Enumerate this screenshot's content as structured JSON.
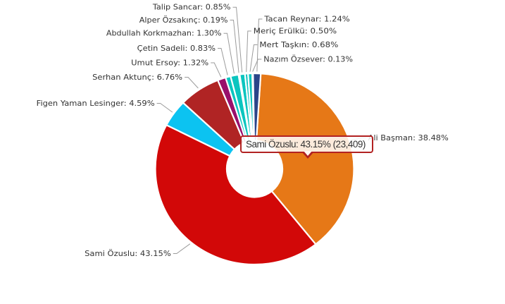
{
  "page": {
    "background_color": "#ffffff"
  },
  "chart_data": {
    "type": "pie",
    "subtype": "donut",
    "title": "",
    "legend_position": "none",
    "grid": false,
    "label_format": "{name}: {pct}%",
    "unit": "%",
    "order": "clockwise-from-top",
    "slices": [
      {
        "name": "Ali Başman",
        "pct": "38.48",
        "color": "#e67817"
      },
      {
        "name": "Sami Özuslu",
        "pct": "43.15",
        "color": "#d20808"
      },
      {
        "name": "Figen Yaman Lesinger",
        "pct": "4.59",
        "color": "#0cc3f1"
      },
      {
        "name": "Serhan Aktunç",
        "pct": "6.76",
        "color": "#b02424"
      },
      {
        "name": "Umut Ersoy",
        "pct": "1.32",
        "color": "#99106b"
      },
      {
        "name": "Çetin Sadeli",
        "pct": "0.83",
        "color": "#0bc5bf"
      },
      {
        "name": "Abdullah Korkmazhan",
        "pct": "1.30",
        "color": "#0bc5bf"
      },
      {
        "name": "Alper Özsakınç",
        "pct": "0.19",
        "color": "#0bc5bf"
      },
      {
        "name": "Talip Sancar",
        "pct": "0.85",
        "color": "#0bc5bf"
      },
      {
        "name": "Meriç Erülkü",
        "pct": "0.50",
        "color": "#0bc5bf"
      },
      {
        "name": "Mert Taşkın",
        "pct": "0.68",
        "color": "#0bc5bf"
      },
      {
        "name": "Nazım Özsever",
        "pct": "0.13",
        "color": "#0bc5bf"
      },
      {
        "name": "Tacan Reynar",
        "pct": "1.24",
        "color": "#2b4589"
      }
    ]
  },
  "tooltip": {
    "name": "Sami Özuslu",
    "pct": "43.15",
    "votes": "23,409",
    "text": "Sami Özuslu: 43.15% (23,409)",
    "border_color": "#b22222",
    "background_color": "rgba(255,255,255,0.85)",
    "text_color": "#333333"
  },
  "styles": {
    "label_color": "#333333",
    "connector_color": "#9b9b9b",
    "slice_border_color": "#ffffff"
  }
}
